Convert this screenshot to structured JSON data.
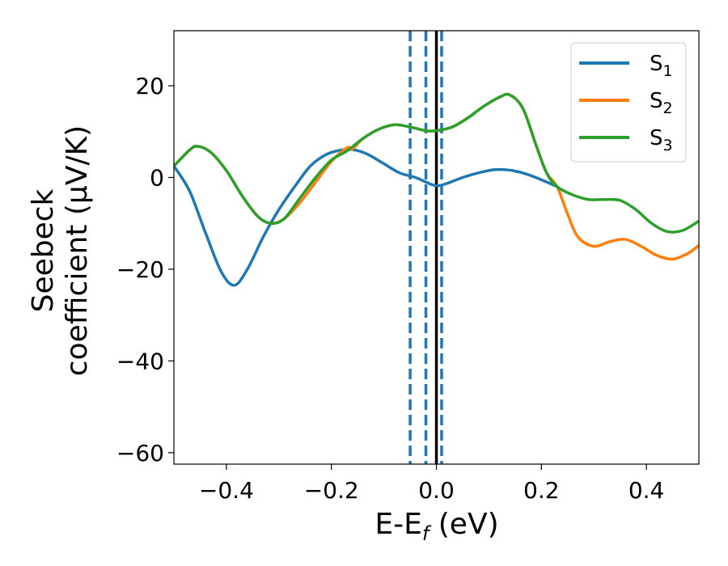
{
  "chart_data": {
    "type": "line",
    "xlabel": {
      "main": "E-E",
      "sub": "f",
      "unit": " (eV)"
    },
    "ylabel": {
      "line1": "Seebeck",
      "line2": "coefficient  (μV/K)"
    },
    "xlim": [
      -0.5,
      0.5
    ],
    "ylim": [
      -62.5,
      32
    ],
    "xticks": [
      -0.4,
      -0.2,
      0.0,
      0.2,
      0.4
    ],
    "xtick_labels": [
      "−0.4",
      "−0.2",
      "0.0",
      "0.2",
      "0.4"
    ],
    "yticks": [
      -60,
      -40,
      -20,
      0,
      20
    ],
    "ytick_labels": [
      "−60",
      "−40",
      "−20",
      "0",
      "20"
    ],
    "grid": false,
    "legend_position": "top-right",
    "vlines": [
      {
        "x": 0.0,
        "style": "solid",
        "color": "#000000"
      },
      {
        "x": -0.05,
        "style": "dashed",
        "color": "#1f77b4"
      },
      {
        "x": -0.02,
        "style": "dashed",
        "color": "#1f77b4"
      },
      {
        "x": 0.01,
        "style": "dashed",
        "color": "#1f77b4"
      }
    ],
    "series": [
      {
        "name": "S",
        "sub": "1",
        "color": "#1f77b4",
        "points": [
          [
            -0.5,
            2.5
          ],
          [
            -0.47,
            -3
          ],
          [
            -0.44,
            -12
          ],
          [
            -0.41,
            -20.5
          ],
          [
            -0.385,
            -23.5
          ],
          [
            -0.36,
            -20
          ],
          [
            -0.33,
            -13
          ],
          [
            -0.3,
            -7
          ],
          [
            -0.27,
            -2
          ],
          [
            -0.24,
            2.5
          ],
          [
            -0.21,
            5
          ],
          [
            -0.18,
            6
          ],
          [
            -0.155,
            6
          ],
          [
            -0.13,
            5
          ],
          [
            -0.1,
            3
          ],
          [
            -0.07,
            1
          ],
          [
            -0.04,
            0
          ],
          [
            -0.02,
            -1
          ],
          [
            0.0,
            -1.8
          ],
          [
            0.02,
            -1.3
          ],
          [
            0.05,
            0
          ],
          [
            0.08,
            1
          ],
          [
            0.11,
            1.7
          ],
          [
            0.14,
            1.6
          ],
          [
            0.17,
            0.8
          ],
          [
            0.2,
            -0.5
          ],
          [
            0.23,
            -2
          ]
        ]
      },
      {
        "name": "S",
        "sub": "2",
        "color": "#ff7f0e",
        "points": [
          [
            -0.5,
            2.5
          ],
          [
            -0.47,
            6
          ],
          [
            -0.455,
            6.8
          ],
          [
            -0.43,
            5.5
          ],
          [
            -0.4,
            1.5
          ],
          [
            -0.37,
            -4
          ],
          [
            -0.34,
            -8.5
          ],
          [
            -0.315,
            -10
          ],
          [
            -0.29,
            -9
          ],
          [
            -0.26,
            -5.5
          ],
          [
            -0.23,
            -1
          ],
          [
            -0.2,
            3.5
          ],
          [
            -0.17,
            6.5
          ],
          [
            -0.16,
            6.2
          ],
          [
            -0.14,
            8.5
          ],
          [
            -0.11,
            10.5
          ],
          [
            -0.08,
            11.5
          ],
          [
            -0.05,
            11
          ],
          [
            -0.02,
            10.2
          ],
          [
            0.0,
            10.2
          ],
          [
            0.03,
            11
          ],
          [
            0.06,
            13
          ],
          [
            0.09,
            15.5
          ],
          [
            0.12,
            17.5
          ],
          [
            0.14,
            18
          ],
          [
            0.165,
            15
          ],
          [
            0.19,
            7
          ],
          [
            0.21,
            1
          ],
          [
            0.23,
            -2
          ],
          [
            0.25,
            -8
          ],
          [
            0.27,
            -13
          ],
          [
            0.3,
            -15
          ],
          [
            0.33,
            -14
          ],
          [
            0.36,
            -13.5
          ],
          [
            0.39,
            -15
          ],
          [
            0.42,
            -17
          ],
          [
            0.45,
            -17.8
          ],
          [
            0.48,
            -16.5
          ],
          [
            0.5,
            -14.8
          ]
        ]
      },
      {
        "name": "S",
        "sub": "3",
        "color": "#2ca02c",
        "points": [
          [
            -0.5,
            2.5
          ],
          [
            -0.47,
            6
          ],
          [
            -0.455,
            6.8
          ],
          [
            -0.43,
            5.5
          ],
          [
            -0.4,
            1.5
          ],
          [
            -0.37,
            -4
          ],
          [
            -0.34,
            -8.5
          ],
          [
            -0.315,
            -10
          ],
          [
            -0.29,
            -9
          ],
          [
            -0.26,
            -4.5
          ],
          [
            -0.23,
            0
          ],
          [
            -0.2,
            3.8
          ],
          [
            -0.17,
            5.8
          ],
          [
            -0.14,
            8.5
          ],
          [
            -0.11,
            10.5
          ],
          [
            -0.08,
            11.5
          ],
          [
            -0.05,
            11
          ],
          [
            -0.02,
            10.2
          ],
          [
            0.0,
            10.2
          ],
          [
            0.03,
            11
          ],
          [
            0.06,
            13
          ],
          [
            0.09,
            15.5
          ],
          [
            0.12,
            17.5
          ],
          [
            0.14,
            18
          ],
          [
            0.165,
            15
          ],
          [
            0.19,
            7
          ],
          [
            0.21,
            1
          ],
          [
            0.23,
            -2
          ],
          [
            0.26,
            -3.8
          ],
          [
            0.29,
            -4.8
          ],
          [
            0.32,
            -4.8
          ],
          [
            0.35,
            -5
          ],
          [
            0.38,
            -7
          ],
          [
            0.41,
            -10
          ],
          [
            0.44,
            -11.8
          ],
          [
            0.47,
            -11.5
          ],
          [
            0.5,
            -9.5
          ]
        ]
      }
    ]
  }
}
